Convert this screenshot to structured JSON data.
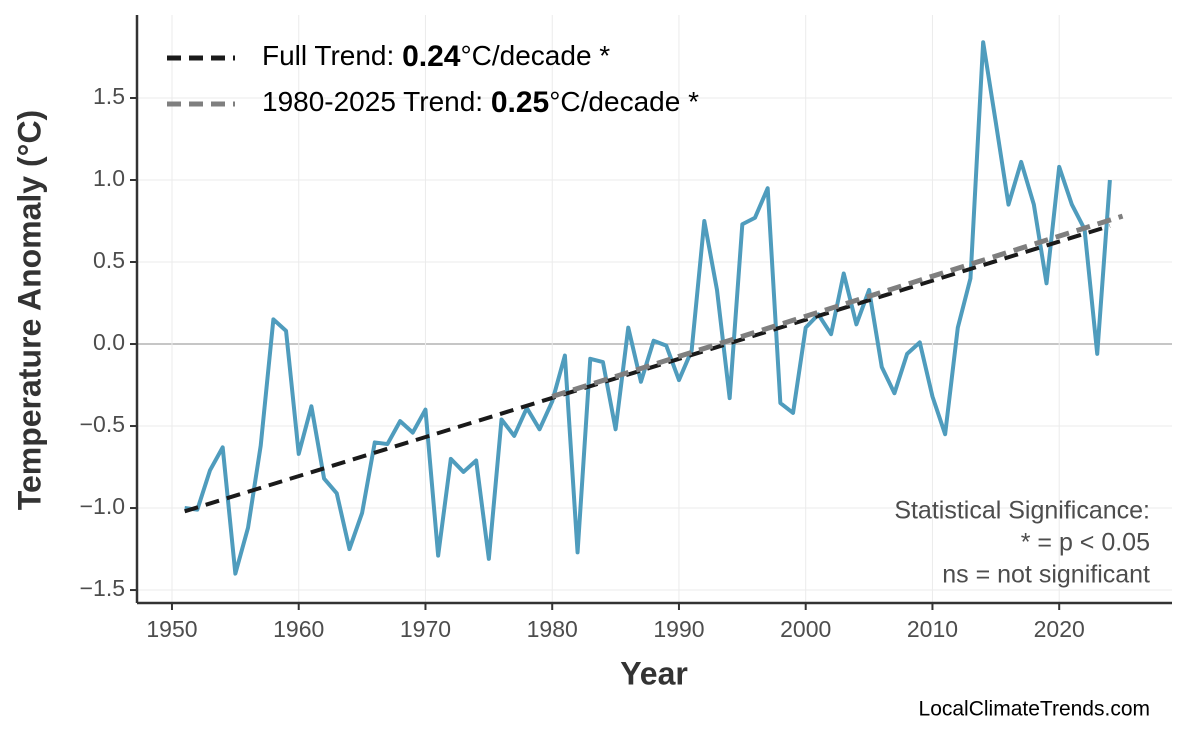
{
  "chart_data": {
    "type": "line",
    "xlabel": "Year",
    "ylabel": "Temperature Anomaly (°C)",
    "xlim": [
      1947.24,
      2028.9
    ],
    "ylim": [
      -1.579,
      2.006
    ],
    "xticks": [
      1950,
      1960,
      1970,
      1980,
      1990,
      2000,
      2010,
      2020
    ],
    "yticks": [
      {
        "value": -1.5,
        "label": "−1.5"
      },
      {
        "value": -1.0,
        "label": "−1.0"
      },
      {
        "value": -0.5,
        "label": "−0.5"
      },
      {
        "value": 0.0,
        "label": "0.0"
      },
      0.5,
      {
        "value": 1.0,
        "label": "1.0"
      },
      1.5
    ],
    "grid": true,
    "series": [
      {
        "color": "#4f9cbd",
        "x": [
          1951,
          1952,
          1953,
          1954,
          1955,
          1956,
          1957,
          1958,
          1959,
          1960,
          1961,
          1962,
          1963,
          1964,
          1965,
          1966,
          1967,
          1968,
          1969,
          1970,
          1971,
          1972,
          1973,
          1974,
          1975,
          1976,
          1977,
          1978,
          1979,
          1980,
          1981,
          1982,
          1983,
          1984,
          1985,
          1986,
          1987,
          1988,
          1989,
          1990,
          1991,
          1992,
          1993,
          1994,
          1995,
          1996,
          1997,
          1998,
          1999,
          2000,
          2001,
          2002,
          2003,
          2004,
          2005,
          2006,
          2007,
          2008,
          2009,
          2010,
          2011,
          2012,
          2013,
          2014,
          2015,
          2016,
          2017,
          2018,
          2019,
          2020,
          2021,
          2022,
          2023,
          2024
        ],
        "values": [
          -1.0,
          -1.01,
          -0.77,
          -0.63,
          -1.4,
          -1.12,
          -0.62,
          0.15,
          0.08,
          -0.67,
          -0.38,
          -0.82,
          -0.91,
          -1.25,
          -1.03,
          -0.6,
          -0.61,
          -0.47,
          -0.54,
          -0.4,
          -1.29,
          -0.7,
          -0.78,
          -0.71,
          -1.31,
          -0.46,
          -0.56,
          -0.39,
          -0.52,
          -0.35,
          -0.07,
          -1.27,
          -0.09,
          -0.11,
          -0.52,
          0.1,
          -0.23,
          0.02,
          -0.01,
          -0.22,
          -0.04,
          0.75,
          0.33,
          -0.33,
          0.73,
          0.77,
          0.95,
          -0.36,
          -0.42,
          0.1,
          0.18,
          0.06,
          0.43,
          0.12,
          0.33,
          -0.14,
          -0.3,
          -0.06,
          0.01,
          -0.32,
          -0.55,
          0.1,
          0.4,
          1.84,
          1.35,
          0.85,
          1.11,
          0.85,
          0.37,
          1.08,
          0.85,
          0.7,
          -0.06,
          1.0
        ]
      },
      {
        "name": "Full Trend:",
        "value_label": "0.24",
        "unit_label": "°C/decade *",
        "color": "#1a1a1a",
        "dashed": true,
        "x": [
          1951,
          2024
        ],
        "values": [
          -1.02,
          0.72
        ]
      },
      {
        "name": "1980-2025 Trend:",
        "value_label": "0.25",
        "unit_label": "°C/decade *",
        "color": "#7f7f7f",
        "dashed": true,
        "x": [
          1980,
          2025
        ],
        "values": [
          -0.32,
          0.78
        ]
      }
    ],
    "annotation": [
      "Statistical Significance:",
      "* = p < 0.05",
      "ns = not significant"
    ],
    "source": "LocalClimateTrends.com"
  }
}
